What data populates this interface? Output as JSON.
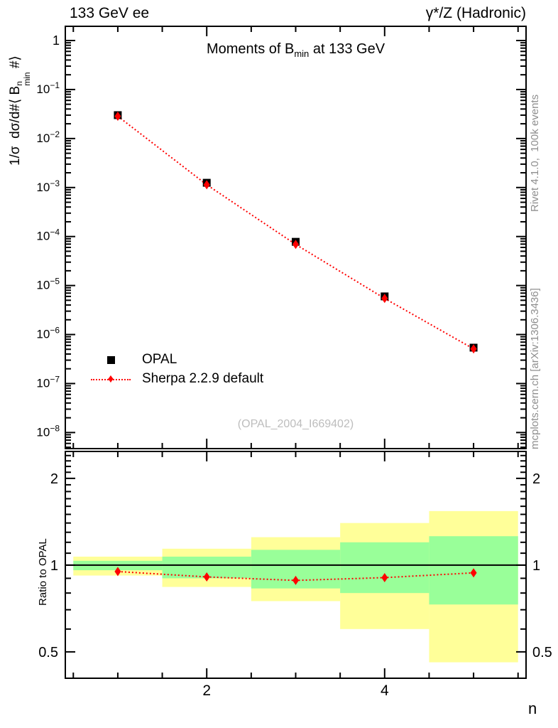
{
  "header": {
    "left": "133 GeV ee",
    "right": "γ*/Z (Hadronic)"
  },
  "title": {
    "pre": "Moments of B",
    "sub": "min",
    "post": " at 133 GeV"
  },
  "axes": {
    "y_main": {
      "pre": "1/σ  dσ/d#⟨ B",
      "sup": "n",
      "sub": "min",
      "post": " #⟩"
    },
    "y_ratio": "Ratio to OPAL",
    "x": "n"
  },
  "watermark": "(OPAL_2004_I669402)",
  "margin_text": {
    "rivet": "Rivet 4.1.0,  100k events",
    "mcplots": "mcplots.cern.ch [arXiv:1306.3436]"
  },
  "colors": {
    "band_yellow": "#ffff99",
    "band_green": "#99ff99",
    "mc_red": "#ff0000",
    "data_black": "#000000",
    "gray_text": "#8f8f8f",
    "watermark_gray": "#bdbdbd"
  },
  "chart_data": {
    "type": "scatter",
    "subtype": "data-vs-mc-with-ratio",
    "title": "Moments of B_min at 133 GeV",
    "xlabel": "n",
    "x": [
      1,
      2,
      3,
      4,
      5
    ],
    "xlim": [
      0.41,
      5.59
    ],
    "x_major_ticks": [
      2,
      4
    ],
    "x_minor_step": 0.5,
    "main_ylim": [
      4.7e-09,
      1.95
    ],
    "main_yscale": "log",
    "series": [
      {
        "name": "OPAL",
        "marker": "square",
        "color": "#000000",
        "values": [
          0.03,
          0.00125,
          7.8e-05,
          6e-06,
          5.4e-07
        ]
      },
      {
        "name": "Sherpa 2.2.9 default",
        "marker": "diamond",
        "color": "#ff0000",
        "line": "dotted",
        "values": [
          0.0285,
          0.00114,
          6.9e-05,
          5.45e-06,
          5.1e-07
        ]
      }
    ],
    "ratio": {
      "ylabel": "Ratio to OPAL",
      "yscale": "log",
      "ylim": [
        0.405,
        2.48
      ],
      "yticks": [
        0.5,
        1,
        2
      ],
      "values": [
        0.95,
        0.91,
        0.885,
        0.905,
        0.94
      ],
      "bands": [
        {
          "x0": 0.5,
          "x1": 1.5,
          "yellow": [
            0.92,
            1.07
          ],
          "green": [
            0.96,
            1.035
          ]
        },
        {
          "x0": 1.5,
          "x1": 2.5,
          "yellow": [
            0.84,
            1.14
          ],
          "green": [
            0.9,
            1.07
          ]
        },
        {
          "x0": 2.5,
          "x1": 3.5,
          "yellow": [
            0.75,
            1.25
          ],
          "green": [
            0.83,
            1.13
          ]
        },
        {
          "x0": 3.5,
          "x1": 4.5,
          "yellow": [
            0.6,
            1.4
          ],
          "green": [
            0.8,
            1.2
          ]
        },
        {
          "x0": 4.5,
          "x1": 5.5,
          "yellow": [
            0.46,
            1.54
          ],
          "green": [
            0.73,
            1.26
          ]
        }
      ]
    }
  }
}
